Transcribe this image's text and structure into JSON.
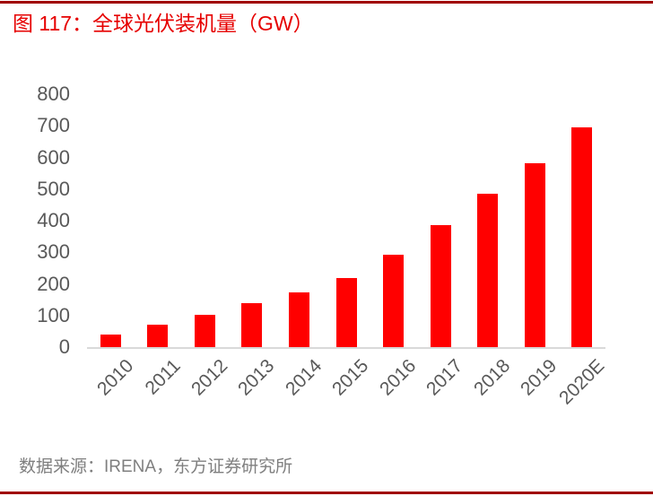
{
  "header": {
    "title": "图 117：全球光伏装机量（GW）"
  },
  "footer": {
    "source_label": "数据来源：IRENA，东方证券研究所"
  },
  "colors": {
    "bar": "#ff0000",
    "rule": "#a00000",
    "title_text": "#e60000",
    "axis_text": "#595959",
    "axis_line": "#d9d9d9",
    "source_text": "#7f7f7f"
  },
  "chart_data": {
    "type": "bar",
    "title": "全球光伏装机量（GW）",
    "categories": [
      "2010",
      "2011",
      "2012",
      "2013",
      "2014",
      "2015",
      "2016",
      "2017",
      "2018",
      "2019",
      "2020E"
    ],
    "values": [
      40,
      72,
      102,
      138,
      172,
      218,
      292,
      386,
      484,
      581,
      696
    ],
    "xlabel": "",
    "ylabel": "",
    "ylim": [
      0,
      800
    ],
    "ytick_step": 100,
    "grid": false,
    "legend": false,
    "bar_color": "#ff0000"
  }
}
